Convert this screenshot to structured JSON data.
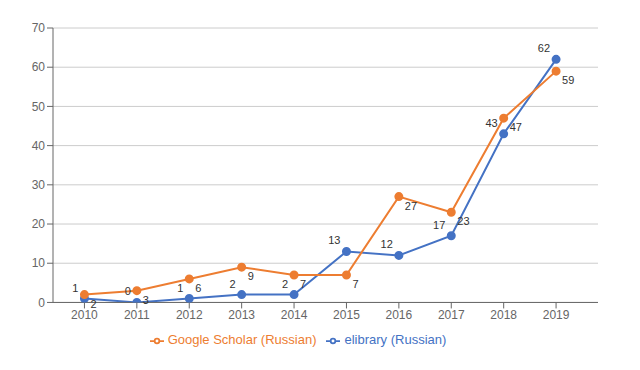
{
  "chart_data": {
    "type": "line",
    "x": [
      2010,
      2011,
      2012,
      2013,
      2014,
      2015,
      2016,
      2017,
      2018,
      2019
    ],
    "series": [
      {
        "name": "elibrary (Russian)",
        "color": "#4472C4",
        "marker": "circle",
        "values": [
          1,
          0,
          1,
          2,
          2,
          13,
          12,
          17,
          43,
          62
        ]
      },
      {
        "name": "Google Scholar (Russian)",
        "color": "#ED7D31",
        "marker": "circle",
        "values": [
          2,
          3,
          6,
          9,
          7,
          7,
          27,
          23,
          47,
          59
        ]
      }
    ],
    "xlim": [
      2009.4,
      2019.8
    ],
    "xticks": [
      2010,
      2011,
      2012,
      2013,
      2014,
      2015,
      2016,
      2017,
      2018,
      2019
    ],
    "ylim": [
      0,
      70
    ],
    "yticks": [
      0,
      10,
      20,
      30,
      40,
      50,
      60,
      70
    ],
    "grid": true,
    "legend": "bottom",
    "data_labels": true
  }
}
